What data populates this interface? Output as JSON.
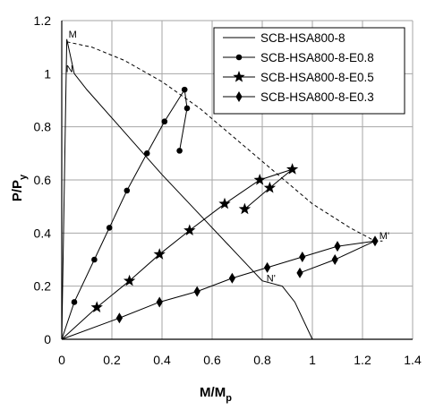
{
  "chart_data": {
    "type": "line",
    "xlabel": "M/M",
    "xlabel_sub": "p",
    "ylabel": "P/P",
    "ylabel_sub": "y",
    "xlim": [
      0,
      1.4
    ],
    "ylim": [
      0,
      1.2
    ],
    "xticks": [
      "0",
      "0.2",
      "0.4",
      "0.6",
      "0.8",
      "1",
      "1.2",
      "1.4"
    ],
    "yticks": [
      "0",
      "0.2",
      "0.4",
      "0.6",
      "0.8",
      "1",
      "1.2"
    ],
    "grid": true,
    "legend_position": "top-right",
    "point_labels": [
      {
        "text": "M",
        "x": 0.02,
        "y": 1.13
      },
      {
        "text": "N",
        "x": 0.01,
        "y": 1.0
      },
      {
        "text": "M'",
        "x": 1.26,
        "y": 0.37
      },
      {
        "text": "N'",
        "x": 0.81,
        "y": 0.21
      }
    ],
    "interaction_envelope": {
      "style": "dashed",
      "x": [
        0.02,
        0.12,
        0.25,
        0.4,
        0.55,
        0.7,
        0.85,
        1.0,
        1.15,
        1.25,
        1.28
      ],
      "y": [
        1.12,
        1.1,
        1.05,
        0.97,
        0.87,
        0.75,
        0.63,
        0.51,
        0.42,
        0.37,
        0.37
      ]
    },
    "series": [
      {
        "name": "SCB-HSA800-8",
        "marker": "none",
        "x": [
          0,
          0.02,
          0.05,
          0.1,
          0.25,
          0.4,
          0.55,
          0.7,
          0.8,
          0.88,
          0.93,
          1.0
        ],
        "y": [
          0,
          1.13,
          1.0,
          0.94,
          0.78,
          0.62,
          0.47,
          0.32,
          0.22,
          0.2,
          0.14,
          0.0
        ]
      },
      {
        "name": "SCB-HSA800-8-E0.8",
        "marker": "circle",
        "x": [
          0,
          0.05,
          0.13,
          0.19,
          0.26,
          0.34,
          0.41,
          0.49,
          0.5,
          0.47
        ],
        "y": [
          0,
          0.14,
          0.3,
          0.42,
          0.56,
          0.7,
          0.82,
          0.94,
          0.87,
          0.71
        ]
      },
      {
        "name": "SCB-HSA800-8-E0.5",
        "marker": "star",
        "x": [
          0,
          0.14,
          0.27,
          0.39,
          0.51,
          0.65,
          0.79,
          0.92,
          0.83,
          0.73
        ],
        "y": [
          0,
          0.12,
          0.22,
          0.32,
          0.41,
          0.51,
          0.6,
          0.64,
          0.57,
          0.49
        ]
      },
      {
        "name": "SCB-HSA800-8-E0.3",
        "marker": "diamond",
        "x": [
          0,
          0.23,
          0.39,
          0.54,
          0.68,
          0.82,
          0.96,
          1.1,
          1.25,
          1.09,
          0.95
        ],
        "y": [
          0,
          0.08,
          0.14,
          0.18,
          0.23,
          0.27,
          0.31,
          0.35,
          0.37,
          0.3,
          0.25
        ]
      }
    ]
  }
}
